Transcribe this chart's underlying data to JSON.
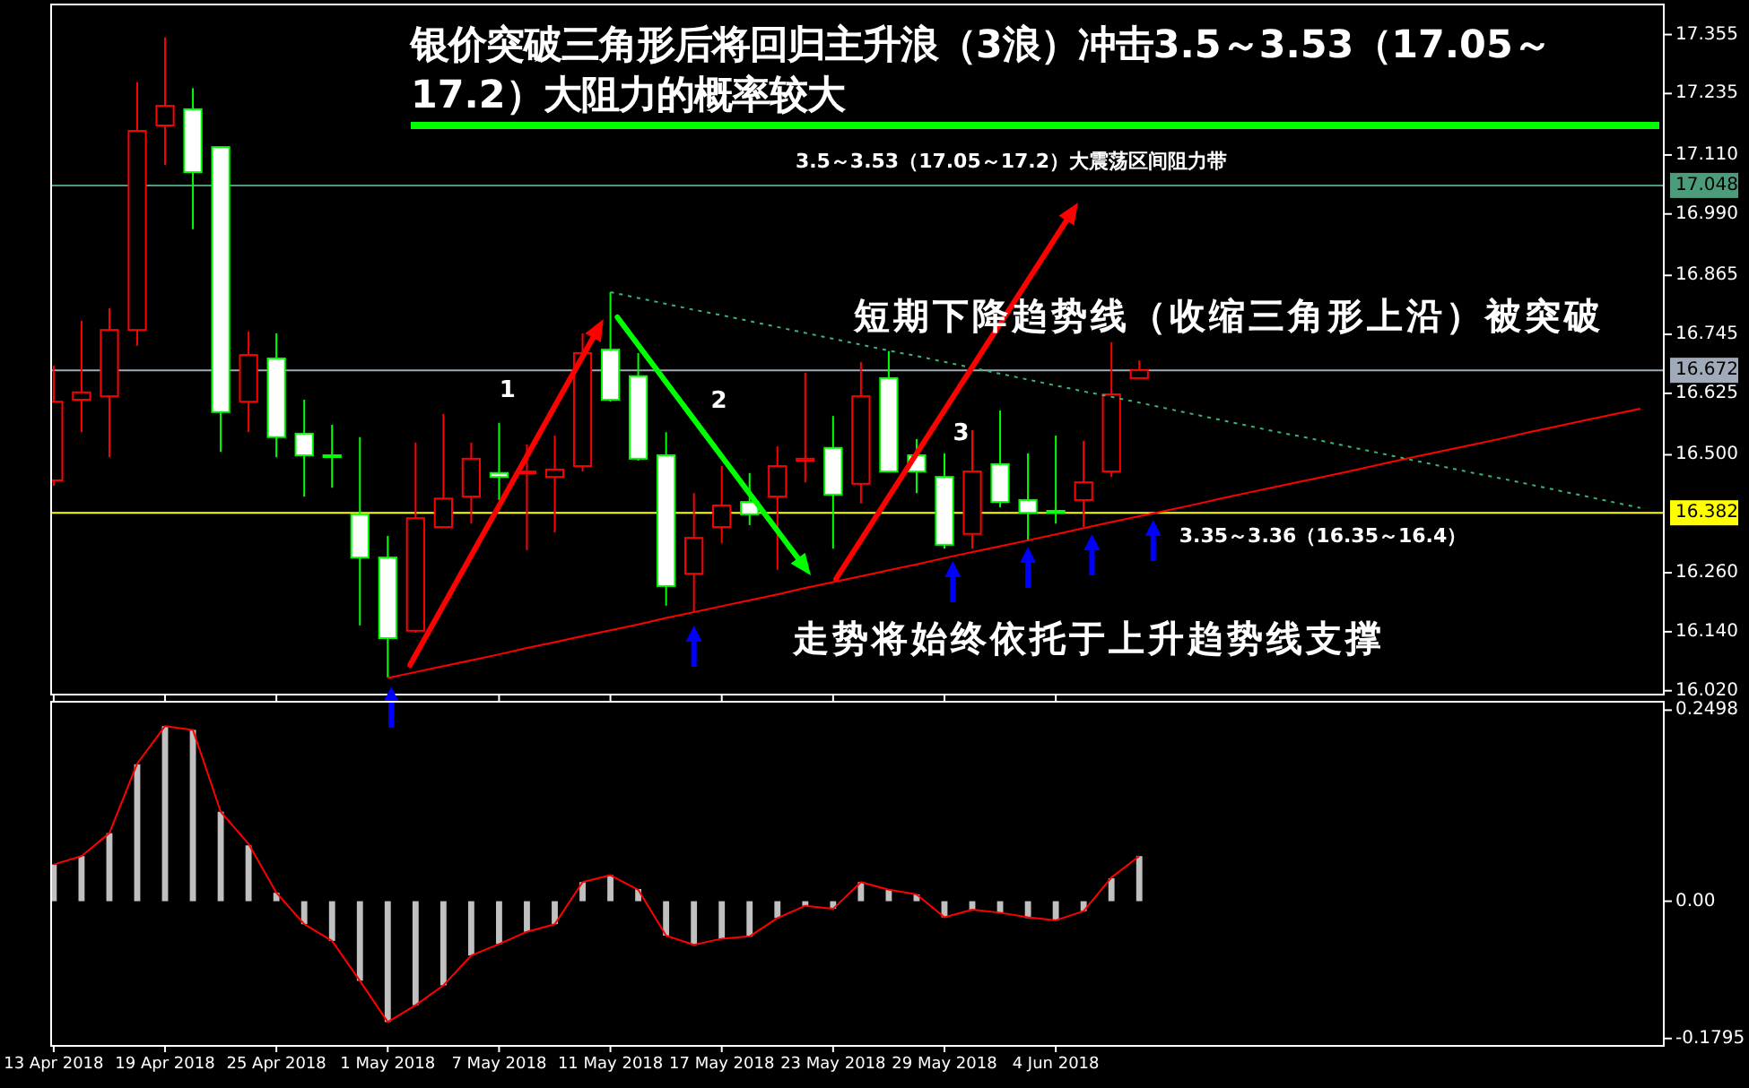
{
  "chart_data": [
    {
      "type": "candlestick",
      "title": "银价突破三角形后将回归主升浪（3浪）冲击3.5～3.53（17.05～17.2）大阻力的概率较大",
      "ohlc": [
        [
          16.448,
          16.681,
          16.437,
          16.608
        ],
        [
          16.612,
          16.773,
          16.546,
          16.627
        ],
        [
          16.619,
          16.798,
          16.495,
          16.754
        ],
        [
          16.754,
          17.258,
          16.722,
          17.159
        ],
        [
          17.17,
          17.349,
          17.09,
          17.21
        ],
        [
          17.203,
          17.246,
          16.959,
          17.075
        ],
        [
          17.126,
          17.126,
          16.506,
          16.587
        ],
        [
          16.608,
          16.751,
          16.546,
          16.703
        ],
        [
          16.696,
          16.747,
          16.495,
          16.536
        ],
        [
          16.543,
          16.612,
          16.415,
          16.499
        ],
        [
          16.499,
          16.561,
          16.433,
          16.499
        ],
        [
          16.379,
          16.536,
          16.153,
          16.291
        ],
        [
          16.291,
          16.335,
          16.047,
          16.127
        ],
        [
          16.142,
          16.525,
          16.138,
          16.371
        ],
        [
          16.353,
          16.583,
          16.353,
          16.411
        ],
        [
          16.415,
          16.525,
          16.36,
          16.492
        ],
        [
          16.463,
          16.565,
          16.408,
          16.455
        ],
        [
          16.463,
          16.521,
          16.306,
          16.466
        ],
        [
          16.455,
          16.539,
          16.342,
          16.47
        ],
        [
          16.477,
          16.747,
          16.466,
          16.707
        ],
        [
          16.714,
          16.831,
          16.608,
          16.612
        ],
        [
          16.66,
          16.707,
          16.488,
          16.492
        ],
        [
          16.499,
          16.546,
          16.193,
          16.233
        ],
        [
          16.258,
          16.422,
          16.178,
          16.331
        ],
        [
          16.353,
          16.477,
          16.32,
          16.397
        ],
        [
          16.404,
          16.463,
          16.357,
          16.379
        ],
        [
          16.415,
          16.517,
          16.266,
          16.477
        ],
        [
          16.488,
          16.667,
          16.444,
          16.492
        ],
        [
          16.514,
          16.579,
          16.309,
          16.419
        ],
        [
          16.441,
          16.689,
          16.401,
          16.619
        ],
        [
          16.656,
          16.711,
          16.466,
          16.466
        ],
        [
          16.499,
          16.532,
          16.422,
          16.466
        ],
        [
          16.455,
          16.503,
          16.309,
          16.317
        ],
        [
          16.339,
          16.55,
          16.309,
          16.466
        ],
        [
          16.481,
          16.59,
          16.393,
          16.404
        ],
        [
          16.408,
          16.503,
          16.324,
          16.382
        ],
        [
          16.386,
          16.539,
          16.36,
          16.382
        ],
        [
          16.408,
          16.528,
          16.353,
          16.444
        ],
        [
          16.466,
          16.729,
          16.455,
          16.623
        ],
        [
          16.656,
          16.692,
          16.656,
          16.672
        ],
        null,
        null,
        null,
        null,
        null,
        null,
        null,
        null,
        null,
        null,
        null,
        null,
        null,
        null,
        null,
        null,
        null,
        null
      ],
      "colors": [
        "#ff0000",
        "#ff0000",
        "#ff0000",
        "#ff0000",
        "#ff0000",
        "#00ff00",
        "#00ff00",
        "#ff0000",
        "#00ff00",
        "#00ff00",
        "#00ff00",
        "#00ff00",
        "#00ff00",
        "#ff0000",
        "#ff0000",
        "#ff0000",
        "#00ff00",
        "#ff0000",
        "#ff0000",
        "#ff0000",
        "#00ff00",
        "#00ff00",
        "#00ff00",
        "#ff0000",
        "#ff0000",
        "#00ff00",
        "#ff0000",
        "#ff0000",
        "#00ff00",
        "#ff0000",
        "#00ff00",
        "#00ff00",
        "#00ff00",
        "#ff0000",
        "#00ff00",
        "#00ff00",
        "#00ff00",
        "#ff0000",
        "#ff0000",
        "#ff0000",
        null,
        null,
        null,
        null,
        null,
        null,
        null,
        null,
        null,
        null,
        null,
        null,
        null,
        null,
        null,
        null,
        null,
        null
      ],
      "ylim": [
        16.014,
        17.418
      ],
      "yticks": [
        17.355,
        17.235,
        {
          "value": 17.11,
          "label": "17.110"
        },
        {
          "value": 16.99,
          "label": "16.990"
        },
        16.865,
        16.745,
        16.625,
        {
          "value": 16.5,
          "label": "16.500"
        },
        {
          "value": 16.26,
          "label": "16.260"
        },
        {
          "value": 16.14,
          "label": "16.140"
        },
        {
          "value": 16.02,
          "label": "16.020"
        }
      ],
      "tick_labels": "y",
      "series": [
        {
          "type": "line",
          "color": "#ff0000",
          "values": [
            null,
            null,
            null,
            null,
            null,
            null,
            null,
            null,
            null,
            null,
            null,
            null,
            16.046,
            16.058,
            16.07,
            16.082,
            16.094,
            16.107,
            16.119,
            16.131,
            16.143,
            16.155,
            16.168,
            16.18,
            16.192,
            16.204,
            16.216,
            16.229,
            16.241,
            16.253,
            16.265,
            16.277,
            16.29,
            16.302,
            16.314,
            16.326,
            16.338,
            16.351,
            16.363,
            16.375,
            16.387,
            16.399,
            16.412,
            16.424,
            16.436,
            16.448,
            16.46,
            16.472,
            16.485,
            16.497,
            16.509,
            16.521,
            16.533,
            16.546,
            16.558,
            16.57,
            16.582,
            16.594
          ]
        },
        {
          "type": "line",
          "color": "#3cb371",
          "line_style": "dotted",
          "values": [
            null,
            null,
            null,
            null,
            null,
            null,
            null,
            null,
            null,
            null,
            null,
            null,
            null,
            null,
            null,
            null,
            null,
            null,
            null,
            null,
            16.831,
            16.819,
            16.807,
            16.795,
            16.784,
            16.772,
            16.76,
            16.748,
            16.736,
            16.724,
            16.712,
            16.701,
            16.689,
            16.677,
            16.665,
            16.653,
            16.641,
            16.629,
            16.618,
            16.606,
            16.594,
            16.582,
            16.57,
            16.558,
            16.546,
            16.535,
            16.523,
            16.511,
            16.499,
            16.487,
            16.475,
            16.463,
            16.452,
            16.44,
            16.428,
            16.416,
            16.404,
            16.392
          ]
        }
      ],
      "ref_lines": [
        {
          "axis": "y",
          "value": 17.048,
          "label": "17.048",
          "color": "#4c9c7c"
        },
        {
          "axis": "y",
          "value": 16.672,
          "label": "16.672",
          "color": "#a0aab8"
        },
        {
          "axis": "y",
          "value": 16.382,
          "label": "16.382",
          "color": "#ffff00"
        }
      ],
      "annotations": [
        "3.5～3.53（17.05～17.2）大震荡区间阻力带",
        "短期下降趋势线（收缩三角形上沿）被突破",
        "1",
        "2",
        "3",
        "3.35～3.36（16.35～16.4）",
        "走势将始终依托于上升趋势线支撑"
      ]
    },
    {
      "type": "bar",
      "categories": [
        "13 Apr 2018",
        null,
        null,
        null,
        "19 Apr 2018",
        null,
        null,
        null,
        "25 Apr 2018",
        null,
        null,
        null,
        "1 May 2018",
        null,
        null,
        null,
        "7 May 2018",
        null,
        null,
        null,
        "11 May 2018",
        null,
        null,
        null,
        "17 May 2018",
        null,
        null,
        null,
        "23 May 2018",
        null,
        null,
        null,
        "29 May 2018",
        null,
        null,
        null,
        "4 Jun 2018",
        null,
        null,
        null,
        null,
        null,
        null,
        null,
        null,
        null,
        null,
        null,
        null,
        null,
        null,
        null,
        null,
        null,
        null,
        null,
        null,
        null
      ],
      "series": [
        {
          "type": "bar",
          "color": "#c0c0c0",
          "values": [
            0.048,
            0.059,
            0.089,
            0.179,
            0.229,
            0.224,
            0.117,
            0.073,
            0.011,
            -0.03,
            -0.052,
            -0.104,
            -0.158,
            -0.136,
            -0.11,
            -0.071,
            -0.056,
            -0.04,
            -0.03,
            0.025,
            0.034,
            0.016,
            -0.045,
            -0.057,
            -0.049,
            -0.046,
            -0.022,
            -0.006,
            -0.01,
            0.025,
            0.015,
            0.009,
            -0.021,
            -0.011,
            -0.015,
            -0.022,
            -0.025,
            -0.013,
            0.03,
            0.059,
            null,
            null,
            null,
            null,
            null,
            null,
            null,
            null,
            null,
            null,
            null,
            null,
            null,
            null,
            null,
            null,
            null,
            null
          ]
        },
        {
          "type": "line",
          "color": "#ff0000",
          "values": [
            0.048,
            0.059,
            0.089,
            0.18,
            0.229,
            0.224,
            0.117,
            0.075,
            0.011,
            -0.03,
            -0.052,
            -0.104,
            -0.158,
            -0.136,
            -0.11,
            -0.071,
            -0.056,
            -0.04,
            -0.03,
            0.025,
            0.034,
            0.015,
            -0.045,
            -0.057,
            -0.049,
            -0.046,
            -0.022,
            -0.006,
            -0.01,
            0.025,
            0.015,
            0.009,
            -0.021,
            -0.011,
            -0.015,
            -0.021,
            -0.025,
            -0.013,
            0.031,
            0.059,
            null,
            null,
            null,
            null,
            null,
            null,
            null,
            null,
            null,
            null,
            null,
            null,
            null,
            null,
            null,
            null,
            null,
            null
          ]
        }
      ],
      "ylim": [
        -0.188,
        0.262
      ],
      "yticks": [
        0.2498,
        {
          "value": 0,
          "label": "0.00"
        },
        -0.1795
      ]
    }
  ]
}
